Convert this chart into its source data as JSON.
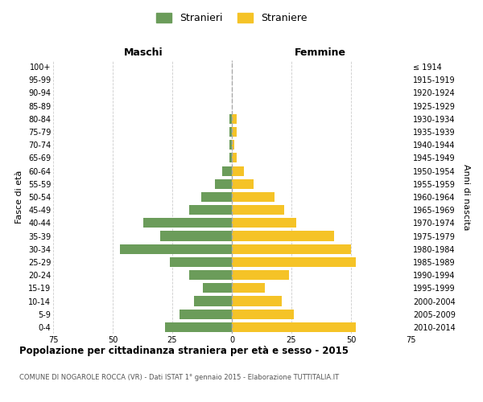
{
  "age_groups": [
    "100+",
    "95-99",
    "90-94",
    "85-89",
    "80-84",
    "75-79",
    "70-74",
    "65-69",
    "60-64",
    "55-59",
    "50-54",
    "45-49",
    "40-44",
    "35-39",
    "30-34",
    "25-29",
    "20-24",
    "15-19",
    "10-14",
    "5-9",
    "0-4"
  ],
  "birth_years": [
    "≤ 1914",
    "1915-1919",
    "1920-1924",
    "1925-1929",
    "1930-1934",
    "1935-1939",
    "1940-1944",
    "1945-1949",
    "1950-1954",
    "1955-1959",
    "1960-1964",
    "1965-1969",
    "1970-1974",
    "1975-1979",
    "1980-1984",
    "1985-1989",
    "1990-1994",
    "1995-1999",
    "2000-2004",
    "2005-2009",
    "2010-2014"
  ],
  "males": [
    0,
    0,
    0,
    0,
    1,
    1,
    1,
    1,
    4,
    7,
    13,
    18,
    37,
    30,
    47,
    26,
    18,
    12,
    16,
    22,
    28
  ],
  "females": [
    0,
    0,
    0,
    0,
    2,
    2,
    1,
    2,
    5,
    9,
    18,
    22,
    27,
    43,
    50,
    52,
    24,
    14,
    21,
    26,
    52
  ],
  "male_color": "#6b9c5a",
  "female_color": "#f5c327",
  "background_color": "#ffffff",
  "grid_color": "#cccccc",
  "center_line_color": "#aaaaaa",
  "title": "Popolazione per cittadinanza straniera per età e sesso - 2015",
  "subtitle": "COMUNE DI NOGAROLE ROCCA (VR) - Dati ISTAT 1° gennaio 2015 - Elaborazione TUTTITALIA.IT",
  "legend_male": "Stranieri",
  "legend_female": "Straniere",
  "xlabel_left": "Maschi",
  "xlabel_right": "Femmine",
  "ylabel_left": "Fasce di età",
  "ylabel_right": "Anni di nascita",
  "xlim": 75,
  "figsize": [
    6.0,
    5.0
  ],
  "dpi": 100
}
